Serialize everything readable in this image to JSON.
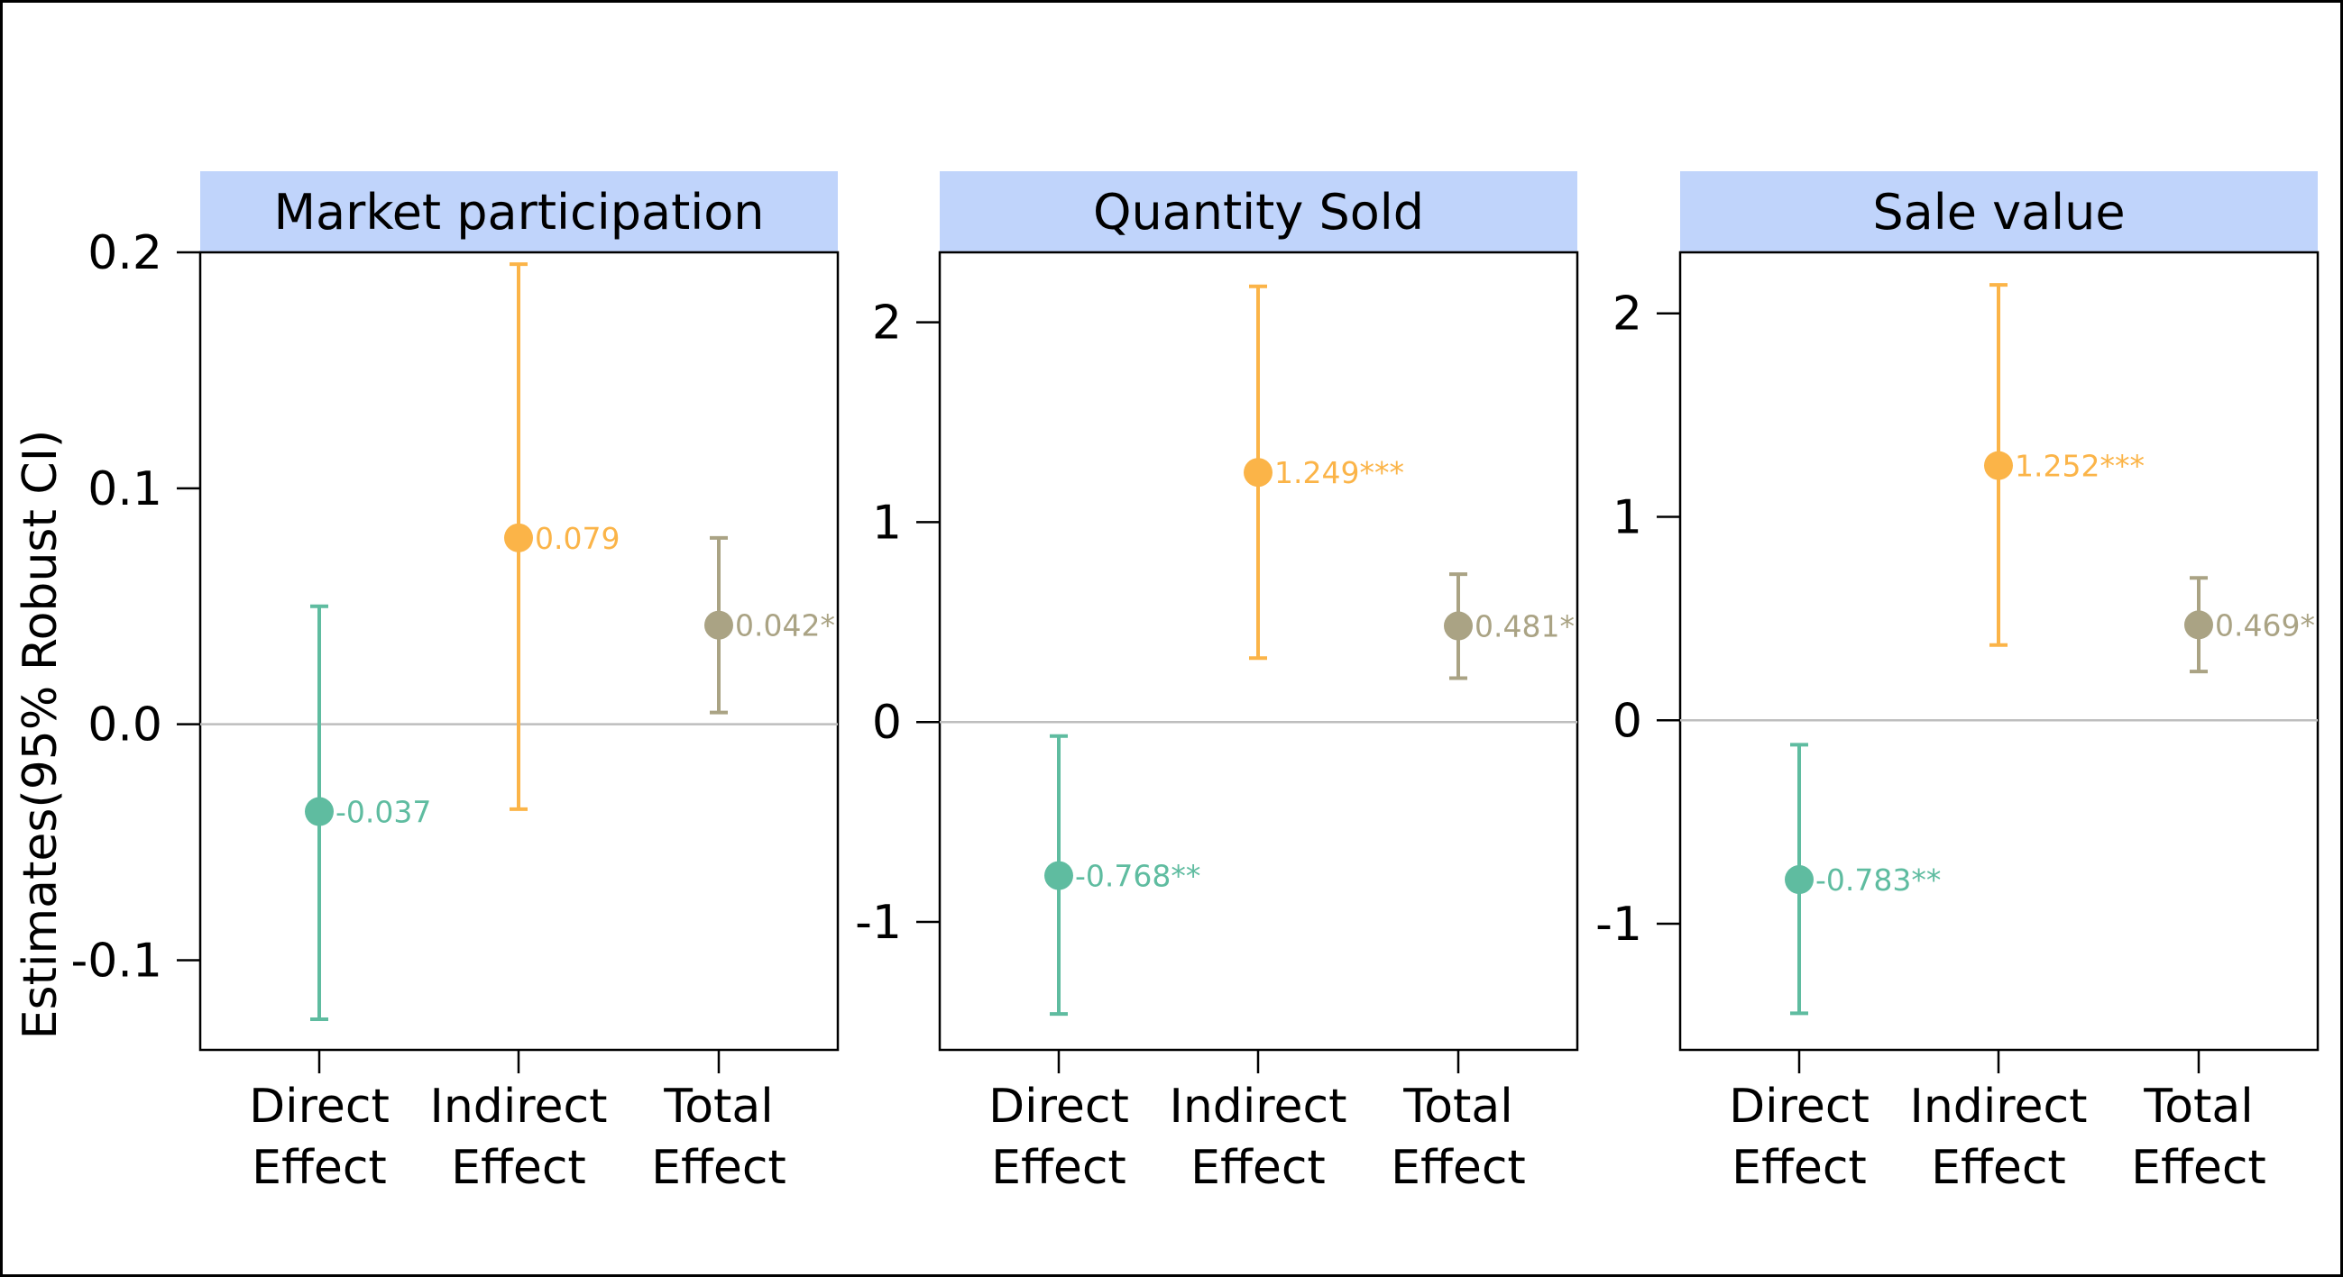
{
  "chart_data": {
    "type": "scatter",
    "ylabel": "Estimates(95% Robust CI)",
    "colors": {
      "Direct Effect": "#5fbca0",
      "Indirect Effect": "#fbb448",
      "Total Effect": "#aaa384",
      "strip_bg": "#c0d4fb",
      "zero_line": "#bebebe"
    },
    "grid": false,
    "panels": [
      {
        "title": "Market participation",
        "categories": [
          "Direct Effect",
          "Indirect Effect",
          "Total Effect"
        ],
        "ylim": [
          -0.138,
          0.2
        ],
        "yticks": [
          -0.1,
          0.0,
          0.1,
          0.2
        ],
        "ytick_labels": [
          "-0.1",
          "0.0",
          "0.1",
          "0.2"
        ],
        "points": [
          {
            "category": "Direct Effect",
            "estimate": -0.037,
            "lower": -0.125,
            "upper": 0.05,
            "label": "-0.037"
          },
          {
            "category": "Indirect Effect",
            "estimate": 0.079,
            "lower": -0.036,
            "upper": 0.195,
            "label": "0.079"
          },
          {
            "category": "Total Effect",
            "estimate": 0.042,
            "lower": 0.005,
            "upper": 0.079,
            "label": "0.042*"
          }
        ]
      },
      {
        "title": "Quantity Sold",
        "categories": [
          "Direct Effect",
          "Indirect Effect",
          "Total Effect"
        ],
        "ylim": [
          -1.64,
          2.35
        ],
        "yticks": [
          -1,
          0,
          1,
          2
        ],
        "ytick_labels": [
          "-1",
          "0",
          "1",
          "2"
        ],
        "points": [
          {
            "category": "Direct Effect",
            "estimate": -0.768,
            "lower": -1.46,
            "upper": -0.07,
            "label": "-0.768**"
          },
          {
            "category": "Indirect Effect",
            "estimate": 1.249,
            "lower": 0.32,
            "upper": 2.18,
            "label": "1.249***"
          },
          {
            "category": "Total Effect",
            "estimate": 0.481,
            "lower": 0.22,
            "upper": 0.74,
            "label": "0.481*"
          }
        ]
      },
      {
        "title": "Sale value",
        "categories": [
          "Direct Effect",
          "Indirect Effect",
          "Total Effect"
        ],
        "ylim": [
          -1.62,
          2.3
        ],
        "yticks": [
          -1,
          0,
          1,
          2
        ],
        "ytick_labels": [
          "-1",
          "0",
          "1",
          "2"
        ],
        "points": [
          {
            "category": "Direct Effect",
            "estimate": -0.783,
            "lower": -1.44,
            "upper": -0.12,
            "label": "-0.783**"
          },
          {
            "category": "Indirect Effect",
            "estimate": 1.252,
            "lower": 0.37,
            "upper": 2.14,
            "label": "1.252***"
          },
          {
            "category": "Total Effect",
            "estimate": 0.469,
            "lower": 0.24,
            "upper": 0.7,
            "label": "0.469*"
          }
        ]
      }
    ]
  }
}
